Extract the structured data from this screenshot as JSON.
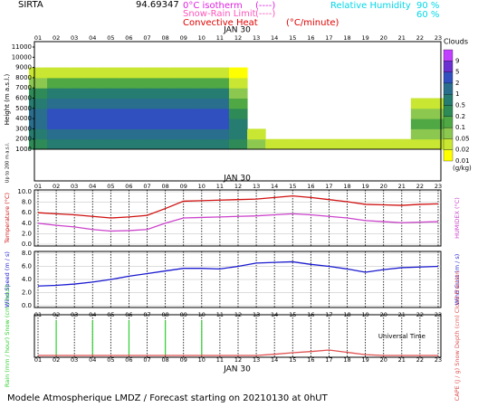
{
  "header": {
    "station": "SIRTA",
    "coords": "94.69347",
    "legend": [
      {
        "label": "0°C isotherm",
        "style": "(----)",
        "color": "#e020e0"
      },
      {
        "label": "Snow-Rain Limit",
        "style": "(----)",
        "color": "#ff55bb"
      },
      {
        "label": "Convective Heat",
        "style": "(°C/minute)",
        "color": "#e00000"
      },
      {
        "label": "Relative Humidity",
        "color": "#00d8e8"
      }
    ],
    "rh_levels": [
      "90 %",
      "60 %"
    ]
  },
  "chart_data": [
    {
      "type": "heatmap",
      "title": "JAN 30",
      "y_label": "Height (m a.s.l.)",
      "sub_label": "Up to 200 m a.s.l.",
      "categories": [
        "01",
        "02",
        "03",
        "04",
        "05",
        "06",
        "07",
        "08",
        "09",
        "10",
        "11",
        "12",
        "13",
        "14",
        "15",
        "16",
        "17",
        "18",
        "19",
        "20",
        "21",
        "22",
        "23"
      ],
      "y": [
        1500,
        2500,
        3500,
        4500,
        5500,
        6500,
        7500,
        8500
      ],
      "z": [
        [
          0.2,
          0.5,
          0.5,
          0.5,
          0.5,
          0.5,
          0.5,
          0.5,
          0.5,
          0.5,
          0.5,
          0.2,
          0.05,
          0.02,
          0.02,
          0.02,
          0.02,
          0.02,
          0.02,
          0.02,
          0.02,
          0.02,
          0.02
        ],
        [
          0.5,
          1,
          1,
          1,
          1,
          1,
          1,
          1,
          1,
          1,
          1,
          0.5,
          0.02,
          0,
          0,
          0,
          0,
          0,
          0,
          0,
          0,
          0.05,
          0.05
        ],
        [
          1,
          2,
          2,
          2,
          2,
          2,
          2,
          2,
          2,
          2,
          2,
          0.5,
          0,
          0,
          0,
          0,
          0,
          0,
          0,
          0,
          0,
          0.1,
          0.1
        ],
        [
          1,
          2,
          2,
          2,
          2,
          2,
          2,
          2,
          2,
          2,
          2,
          0.2,
          0,
          0,
          0,
          0,
          0,
          0,
          0,
          0,
          0,
          0.05,
          0.05
        ],
        [
          0.5,
          1,
          1,
          1,
          1,
          1,
          1,
          1,
          1,
          1,
          1,
          0.1,
          0,
          0,
          0,
          0,
          0,
          0,
          0,
          0,
          0,
          0.02,
          0.02
        ],
        [
          0.2,
          0.5,
          0.5,
          0.5,
          0.5,
          0.5,
          0.5,
          0.5,
          0.5,
          0.5,
          0.5,
          0.05,
          0,
          0,
          0,
          0,
          0,
          0,
          0,
          0,
          0,
          0,
          0
        ],
        [
          0.05,
          0.1,
          0.1,
          0.1,
          0.1,
          0.1,
          0.1,
          0.1,
          0.1,
          0.1,
          0.1,
          0.02,
          0,
          0,
          0,
          0,
          0,
          0,
          0,
          0,
          0,
          0,
          0
        ],
        [
          0.02,
          0.02,
          0.02,
          0.02,
          0.02,
          0.02,
          0.02,
          0.02,
          0.02,
          0.02,
          0.02,
          0.01,
          0,
          0,
          0,
          0,
          0,
          0,
          0,
          0,
          0,
          0,
          0
        ]
      ],
      "ylim": [
        1000,
        11000
      ],
      "yticks": [
        1000,
        2000,
        3000,
        4000,
        5000,
        6000,
        7000,
        8000,
        9000,
        10000,
        11000
      ],
      "colorbar": {
        "title": "Clouds",
        "unit": "(g/kg)",
        "levels": [
          0.01,
          0.02,
          0.05,
          0.1,
          0.2,
          0.5,
          1,
          2,
          5,
          9
        ],
        "colors": [
          "#ffff00",
          "#c8e632",
          "#8cc850",
          "#50a845",
          "#2e8b57",
          "#267c70",
          "#2a6e8e",
          "#3050c0",
          "#6a30d0",
          "#c040ff"
        ]
      }
    },
    {
      "type": "line",
      "title": "JAN 30",
      "y_label": "Temperature (°C)",
      "y2_label": "HUMIDEX (°C)",
      "categories": [
        "01",
        "02",
        "03",
        "04",
        "05",
        "06",
        "07",
        "08",
        "09",
        "10",
        "11",
        "12",
        "13",
        "14",
        "15",
        "16",
        "17",
        "18",
        "19",
        "20",
        "21",
        "22",
        "23"
      ],
      "ylim": [
        0,
        10
      ],
      "yticks": [
        {
          "value": 0,
          "label": "0.0"
        },
        {
          "value": 2,
          "label": "2.0"
        },
        {
          "value": 4,
          "label": "4.0"
        },
        {
          "value": 6,
          "label": "6.0"
        },
        {
          "value": 8,
          "label": "8.0"
        },
        {
          "value": 10,
          "label": "10.0"
        }
      ],
      "series": [
        {
          "color": "#d01010",
          "values": [
            6.0,
            5.8,
            5.6,
            5.3,
            5.0,
            5.2,
            5.5,
            6.8,
            8.2,
            8.3,
            8.4,
            8.5,
            8.6,
            8.9,
            9.2,
            8.9,
            8.5,
            8.1,
            7.6,
            7.5,
            7.4,
            7.6,
            7.7
          ]
        },
        {
          "color": "#cc44cc",
          "values": [
            4.0,
            3.6,
            3.3,
            2.8,
            2.5,
            2.6,
            2.8,
            4.0,
            5.0,
            5.1,
            5.2,
            5.3,
            5.4,
            5.6,
            5.8,
            5.6,
            5.3,
            5.0,
            4.5,
            4.3,
            4.1,
            4.2,
            4.3
          ]
        }
      ]
    },
    {
      "type": "line",
      "y_label": "Wind Speed (m / s)",
      "y2_label": "Wind Gust (m / s)",
      "categories": [
        "01",
        "02",
        "03",
        "04",
        "05",
        "06",
        "07",
        "08",
        "09",
        "10",
        "11",
        "12",
        "13",
        "14",
        "15",
        "16",
        "17",
        "18",
        "19",
        "20",
        "21",
        "22",
        "23"
      ],
      "ylim": [
        0,
        8
      ],
      "yticks": [
        {
          "value": 0,
          "label": "0.0"
        },
        {
          "value": 2,
          "label": "2.0"
        },
        {
          "value": 4,
          "label": "4.0"
        },
        {
          "value": 6,
          "label": "6.0"
        },
        {
          "value": 8,
          "label": "8.0"
        }
      ],
      "series": [
        {
          "color": "#1a1ad0",
          "values": [
            3.0,
            3.1,
            3.3,
            3.6,
            4.0,
            4.5,
            4.9,
            5.3,
            5.7,
            5.7,
            5.6,
            6.0,
            6.5,
            6.6,
            6.7,
            6.3,
            6.0,
            5.6,
            5.1,
            5.5,
            5.8,
            5.9,
            6.0
          ]
        }
      ]
    },
    {
      "type": "combo",
      "title": "JAN 30",
      "y_label": "Rain (mm / hour) Snow (cm / hour)",
      "y2_label": "CAPE (J / g) Snow Depth (cm) Cloud Fraction",
      "x_label": "Universal Time",
      "categories": [
        "01",
        "02",
        "03",
        "04",
        "05",
        "06",
        "07",
        "08",
        "09",
        "10",
        "11",
        "12",
        "13",
        "14",
        "15",
        "16",
        "17",
        "18",
        "19",
        "20",
        "21",
        "22",
        "23"
      ],
      "ylim": [
        0,
        1
      ],
      "series": [
        {
          "kind": "bar",
          "color": "#30d030",
          "values": [
            0,
            0.9,
            0,
            0.9,
            0,
            0.9,
            0,
            0.9,
            0,
            0.9,
            0,
            0,
            0,
            0,
            0,
            0,
            0,
            0,
            0,
            0,
            0,
            0,
            0
          ]
        },
        {
          "kind": "line",
          "color": "#e05050",
          "values": [
            0,
            0,
            0,
            0,
            0,
            0,
            0,
            0,
            0,
            0,
            0,
            0,
            0,
            0.03,
            0.07,
            0.1,
            0.14,
            0.08,
            0.02,
            0,
            0,
            0,
            0
          ]
        }
      ]
    }
  ],
  "footer": "Modele Atmospherique LMDZ / Forecast starting on 20210130 at 0hUT"
}
